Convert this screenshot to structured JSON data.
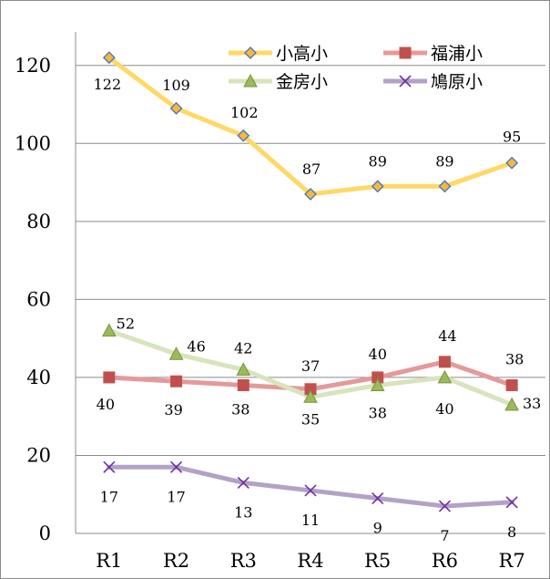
{
  "chart_data": {
    "type": "line",
    "title": "",
    "xlabel": "",
    "ylabel": "",
    "categories": [
      "R1",
      "R2",
      "R3",
      "R4",
      "R5",
      "R6",
      "R7"
    ],
    "ylim": [
      0,
      130
    ],
    "yticks": [
      0,
      20,
      40,
      60,
      80,
      100,
      120
    ],
    "grid": "horizontal",
    "legend_position": "top-right",
    "series": [
      {
        "name": "小高小",
        "values": [
          122,
          109,
          102,
          87,
          89,
          89,
          95
        ],
        "color": "#ffd966",
        "marker": "diamond",
        "marker_fill": "#f4b93a",
        "marker_stroke": "#4472c4"
      },
      {
        "name": "福浦小",
        "values": [
          40,
          39,
          38,
          37,
          40,
          44,
          38
        ],
        "color": "#e6999a",
        "marker": "square",
        "marker_fill": "#c0504d",
        "marker_stroke": "#c0504d"
      },
      {
        "name": "金房小",
        "values": [
          52,
          46,
          42,
          35,
          38,
          40,
          33
        ],
        "color": "#d7e4bd",
        "marker": "triangle",
        "marker_fill": "#9bbb59",
        "marker_stroke": "#77933c"
      },
      {
        "name": "鳩原小",
        "values": [
          17,
          17,
          13,
          11,
          9,
          7,
          8
        ],
        "color": "#b3a2c7",
        "marker": "x",
        "marker_fill": "none",
        "marker_stroke": "#7030a0"
      }
    ]
  }
}
